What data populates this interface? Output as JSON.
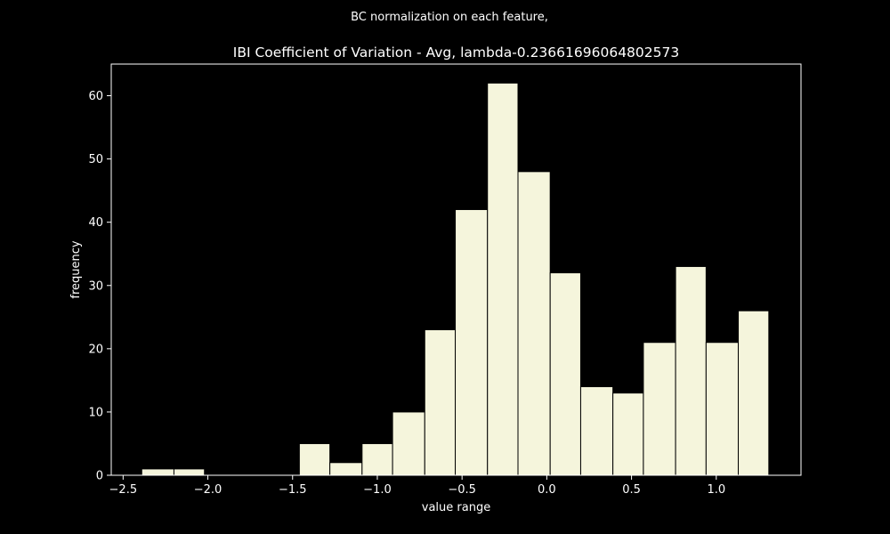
{
  "chart_data": {
    "type": "bar",
    "suptitle": "BC normalization on each feature,",
    "title": "IBI Coefficient of Variation - Avg, lambda-0.23661696064802573",
    "xlabel": "value range",
    "ylabel": "frequency",
    "xlim": [
      -2.57,
      1.5
    ],
    "ylim": [
      0,
      65
    ],
    "xticks": [
      -2.5,
      -2.0,
      -1.5,
      -1.0,
      -0.5,
      0.0,
      0.5,
      1.0
    ],
    "xtick_labels": [
      "−2.5",
      "−2.0",
      "−1.5",
      "−1.0",
      "−0.5",
      "0.0",
      "0.5",
      "1.0"
    ],
    "yticks": [
      0,
      10,
      20,
      30,
      40,
      50,
      60
    ],
    "ytick_labels": [
      "0",
      "10",
      "20",
      "30",
      "40",
      "50",
      "60"
    ],
    "bins": [
      {
        "x0": -2.39,
        "x1": -2.2,
        "count": 1
      },
      {
        "x0": -2.2,
        "x1": -2.02,
        "count": 1
      },
      {
        "x0": -2.02,
        "x1": -1.83,
        "count": 0
      },
      {
        "x0": -1.83,
        "x1": -1.65,
        "count": 0
      },
      {
        "x0": -1.65,
        "x1": -1.46,
        "count": 0
      },
      {
        "x0": -1.46,
        "x1": -1.28,
        "count": 5
      },
      {
        "x0": -1.28,
        "x1": -1.09,
        "count": 2
      },
      {
        "x0": -1.09,
        "x1": -0.91,
        "count": 5
      },
      {
        "x0": -0.91,
        "x1": -0.72,
        "count": 10
      },
      {
        "x0": -0.72,
        "x1": -0.54,
        "count": 23
      },
      {
        "x0": -0.54,
        "x1": -0.35,
        "count": 42
      },
      {
        "x0": -0.35,
        "x1": -0.17,
        "count": 62
      },
      {
        "x0": -0.17,
        "x1": 0.02,
        "count": 48
      },
      {
        "x0": 0.02,
        "x1": 0.2,
        "count": 32
      },
      {
        "x0": 0.2,
        "x1": 0.39,
        "count": 14
      },
      {
        "x0": 0.39,
        "x1": 0.57,
        "count": 13
      },
      {
        "x0": 0.57,
        "x1": 0.76,
        "count": 21
      },
      {
        "x0": 0.76,
        "x1": 0.94,
        "count": 33
      },
      {
        "x0": 0.94,
        "x1": 1.13,
        "count": 21
      },
      {
        "x0": 1.13,
        "x1": 1.31,
        "count": 26
      }
    ],
    "grid": false,
    "colors": {
      "background": "#000000",
      "bar_fill": "#f5f5dc",
      "bar_edge": "#000000",
      "axes": "#ffffff",
      "text": "#ffffff"
    }
  }
}
